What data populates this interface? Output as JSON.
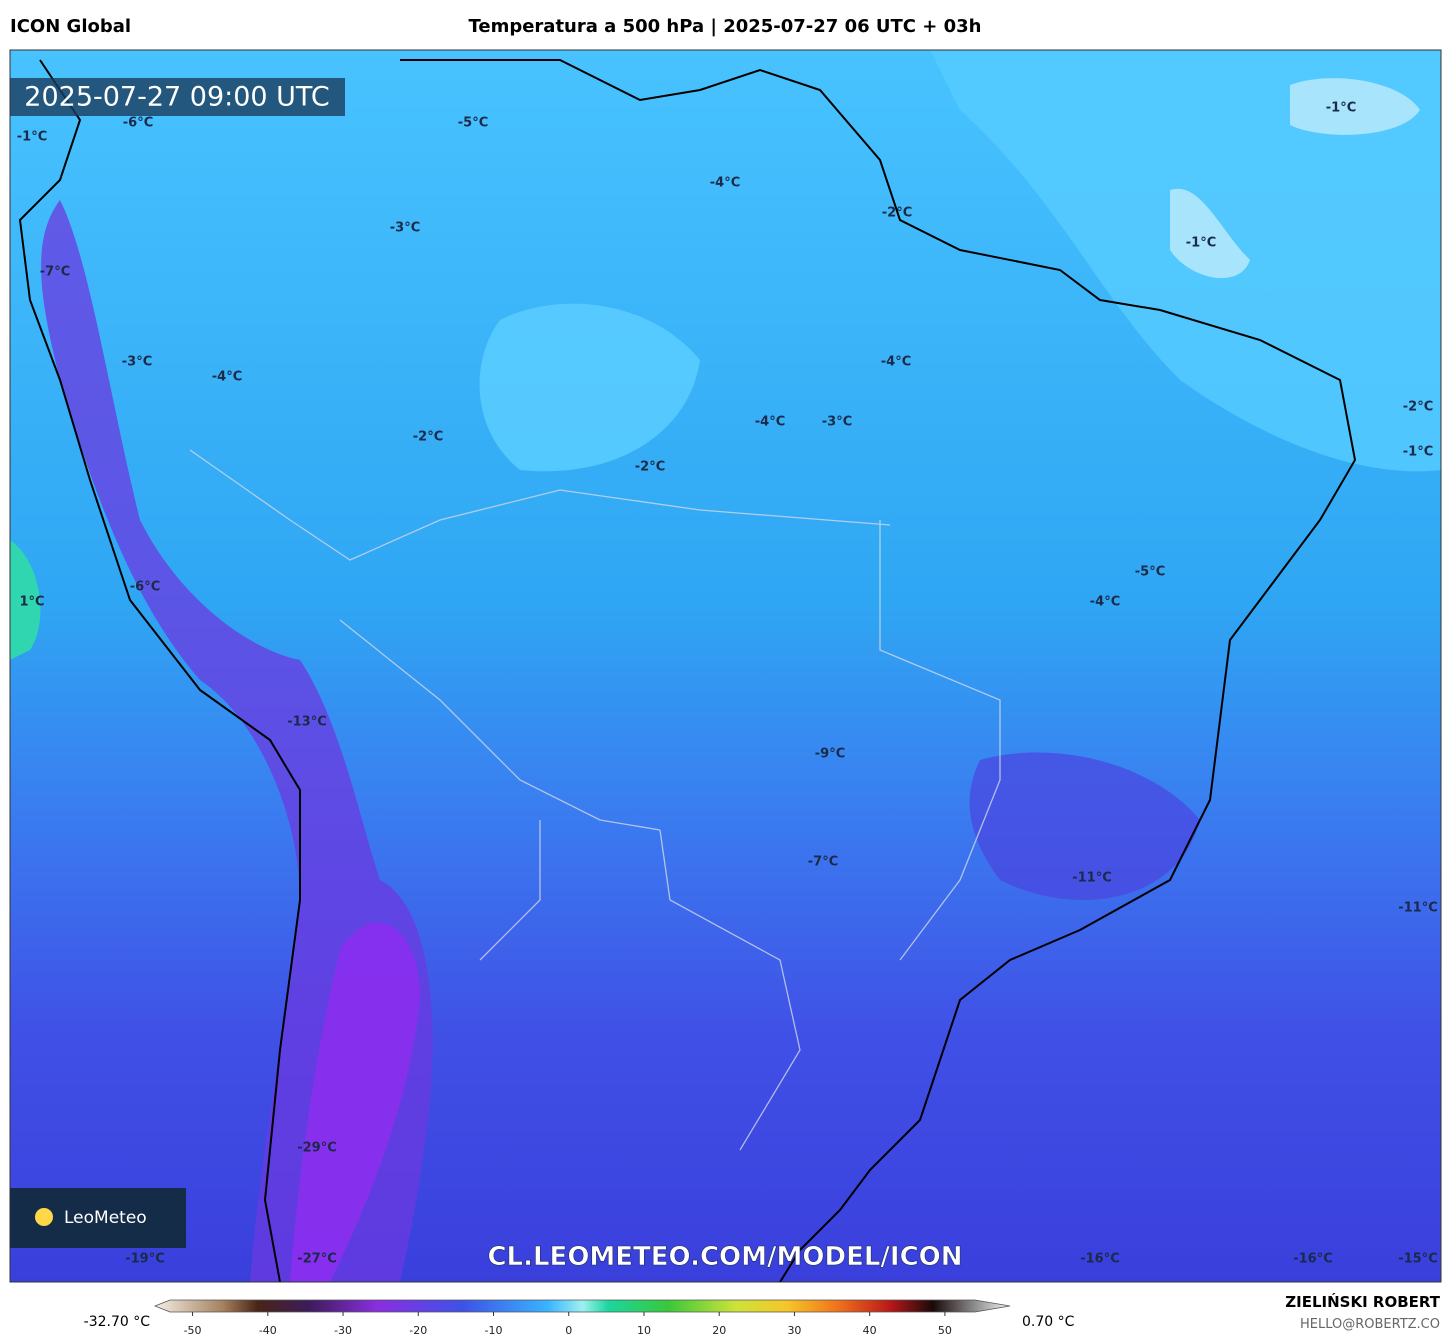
{
  "header": {
    "model": "ICON Global",
    "title": "Temperatura a 500 hPa | 2025-07-27 06 UTC + 03h"
  },
  "timestamp": "2025-07-27 09:00 UTC",
  "map_labels": [
    "-1°C",
    "-5°C",
    "-6°C",
    "-1°C",
    "-4°C",
    "-2°C",
    "-3°C",
    "-1°C",
    "-7°C",
    "-3°C",
    "-4°C",
    "-4°C",
    "-2°C",
    "-4°C",
    "-3°C",
    "-2°C",
    "-1°C",
    "-2°C",
    "-5°C",
    "-6°C",
    "-4°C",
    "1°C",
    "-13°C",
    "-9°C",
    "-7°C",
    "-11°C",
    "-11°C",
    "-29°C",
    "-19°C",
    "-27°C",
    "-16°C",
    "-16°C",
    "-15°C"
  ],
  "logo": "LeoMeteo",
  "watermark": "CL.LEOMETEO.COM/MODEL/ICON",
  "colorbar": {
    "min_label": "-32.70 °C",
    "max_label": "0.70 °C",
    "lim": [
      -53,
      54
    ],
    "ticks": [
      -50,
      -40,
      -30,
      -20,
      -10,
      0,
      10,
      20,
      30,
      40,
      50
    ]
  },
  "credits": {
    "author": "ZIELIŃSKI ROBERT",
    "contact": "HELLO@ROBERTZ.CO"
  }
}
